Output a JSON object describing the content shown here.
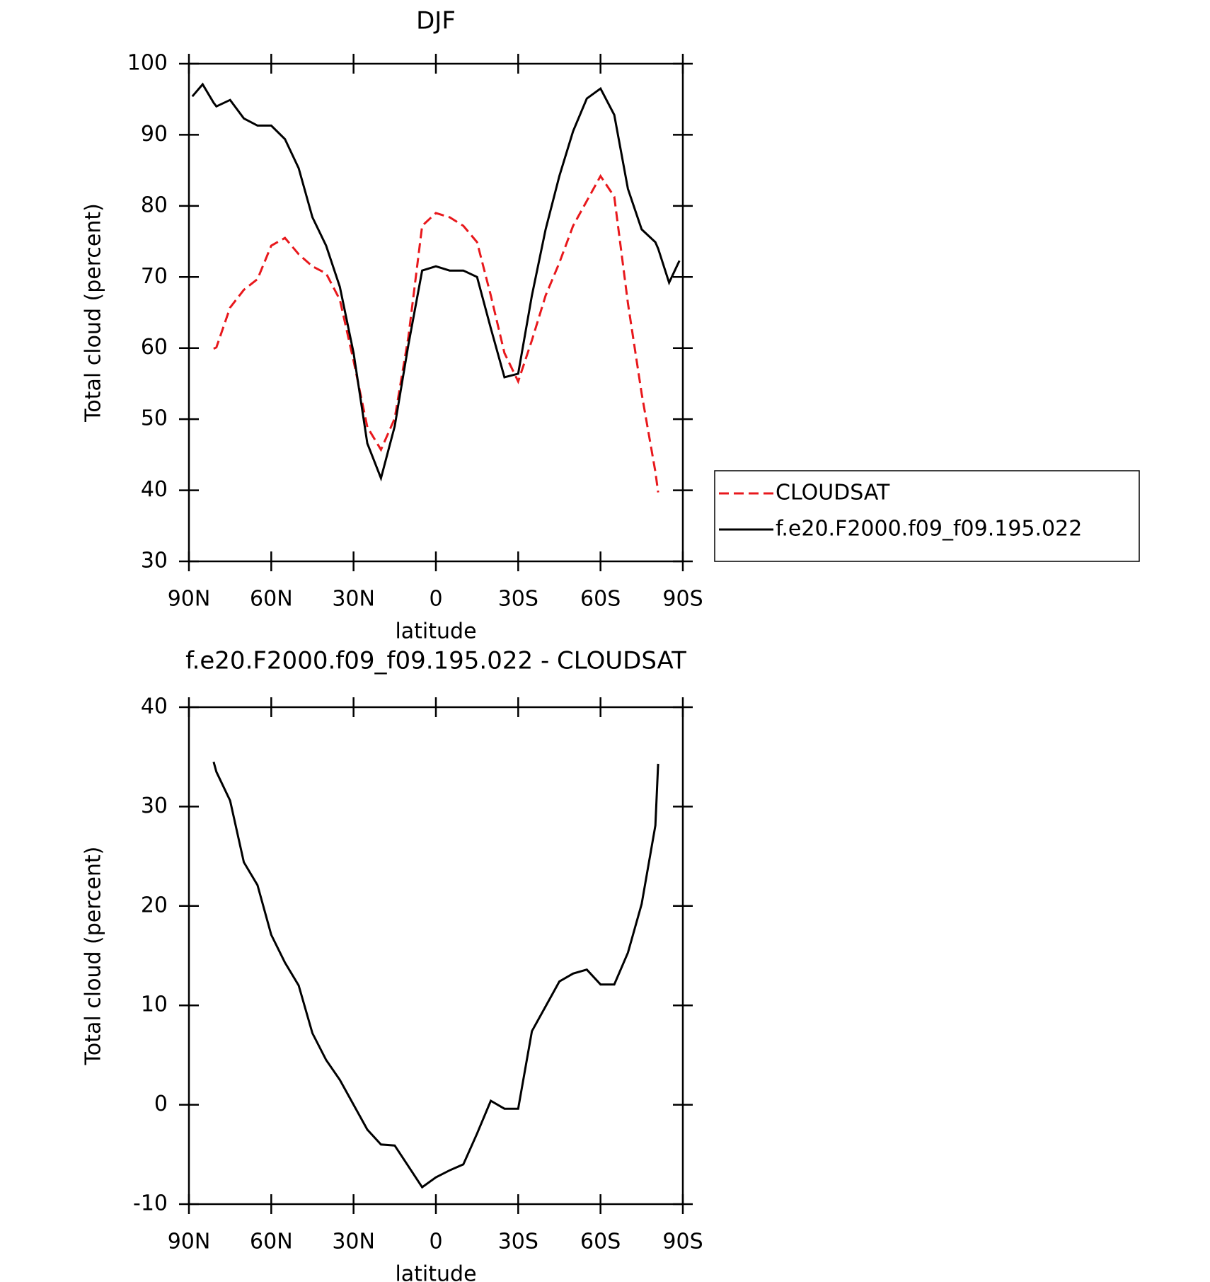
{
  "chart_data": [
    {
      "type": "line",
      "title": "DJF",
      "x_label": "latitude",
      "y_label": "Total cloud (percent)",
      "x": [
        88.75,
        85,
        81,
        80,
        75,
        70,
        65,
        60,
        55,
        50,
        45,
        40,
        35,
        30,
        25,
        20,
        15,
        10,
        5,
        0,
        -5,
        -10,
        -15,
        -20,
        -25,
        -30,
        -35,
        -40,
        -45,
        -50,
        -55,
        -60,
        -65,
        -70,
        -75,
        -80,
        -81,
        -85,
        -88.75
      ],
      "series": [
        {
          "name": "CLOUDSAT",
          "color": "#e8181c",
          "line_style": "dashed",
          "values": [
            null,
            null,
            59.9,
            60.1,
            65.7,
            68.2,
            69.7,
            74.4,
            75.5,
            73.2,
            71.5,
            70.5,
            66.8,
            58.2,
            48.9,
            45.7,
            50.1,
            61.6,
            77.2,
            79,
            78.4,
            77.2,
            74.9,
            67.4,
            59.3,
            55.3,
            61.1,
            67.4,
            72,
            77.2,
            80.7,
            84.2,
            81.3,
            66.3,
            53.6,
            42.6,
            39.7,
            null,
            null
          ]
        },
        {
          "name": "f.e20.F2000.f09_f09.195.022",
          "color": "#000000",
          "line_style": "solid",
          "values": [
            95.4,
            97.1,
            94.5,
            94,
            94.9,
            92.3,
            91.3,
            91.3,
            89.4,
            85.3,
            78.4,
            74.4,
            68.6,
            59.3,
            46.6,
            41.7,
            49,
            60.5,
            70.9,
            71.5,
            70.9,
            70.9,
            70,
            62.8,
            55.9,
            56.4,
            67.4,
            76.7,
            84.2,
            90.5,
            95.1,
            96.5,
            92.8,
            82.4,
            76.7,
            74.9,
            74,
            69.2,
            72.3
          ]
        }
      ],
      "xlim": [
        90,
        -90
      ],
      "xticks": [
        {
          "value": 90,
          "label": "90N"
        },
        {
          "value": 60,
          "label": "60N"
        },
        {
          "value": 30,
          "label": "30N"
        },
        0,
        {
          "value": -30,
          "label": "30S"
        },
        {
          "value": -60,
          "label": "60S"
        },
        {
          "value": -90,
          "label": "90S"
        }
      ],
      "ylim": [
        30,
        100
      ],
      "yticks": [
        30,
        40,
        50,
        60,
        70,
        80,
        90,
        100
      ],
      "legend": "right"
    },
    {
      "type": "line",
      "title": "f.e20.F2000.f09_f09.195.022 - CLOUDSAT",
      "x_label": "latitude",
      "y_label": "Total cloud (percent)",
      "x": [
        81,
        80,
        75,
        70,
        65,
        60,
        55,
        50,
        45,
        40,
        35,
        30,
        25,
        20,
        15,
        10,
        5,
        0,
        -5,
        -10,
        -15,
        -20,
        -25,
        -30,
        -35,
        -40,
        -45,
        -50,
        -55,
        -60,
        -65,
        -70,
        -75,
        -80,
        -81
      ],
      "values": [
        34.5,
        33.5,
        30.6,
        24.4,
        22.1,
        17.1,
        14.3,
        12,
        7.2,
        4.5,
        2.5,
        0,
        -2.5,
        -4,
        -4.1,
        -6.2,
        -8.3,
        -7.3,
        -6.6,
        -6,
        -2.9,
        0.4,
        -0.4,
        -0.4,
        7.4,
        9.9,
        12.4,
        13.2,
        13.6,
        12.1,
        12.1,
        15.3,
        20.2,
        28.1,
        34.3
      ],
      "color": "#000000",
      "xlim": [
        90,
        -90
      ],
      "xticks": [
        {
          "value": 90,
          "label": "90N"
        },
        {
          "value": 60,
          "label": "60N"
        },
        {
          "value": 30,
          "label": "30N"
        },
        0,
        {
          "value": -30,
          "label": "30S"
        },
        {
          "value": -60,
          "label": "60S"
        },
        {
          "value": -90,
          "label": "90S"
        }
      ],
      "ylim": [
        -10,
        40
      ],
      "yticks": [
        -10,
        0,
        10,
        20,
        30,
        40
      ]
    }
  ]
}
